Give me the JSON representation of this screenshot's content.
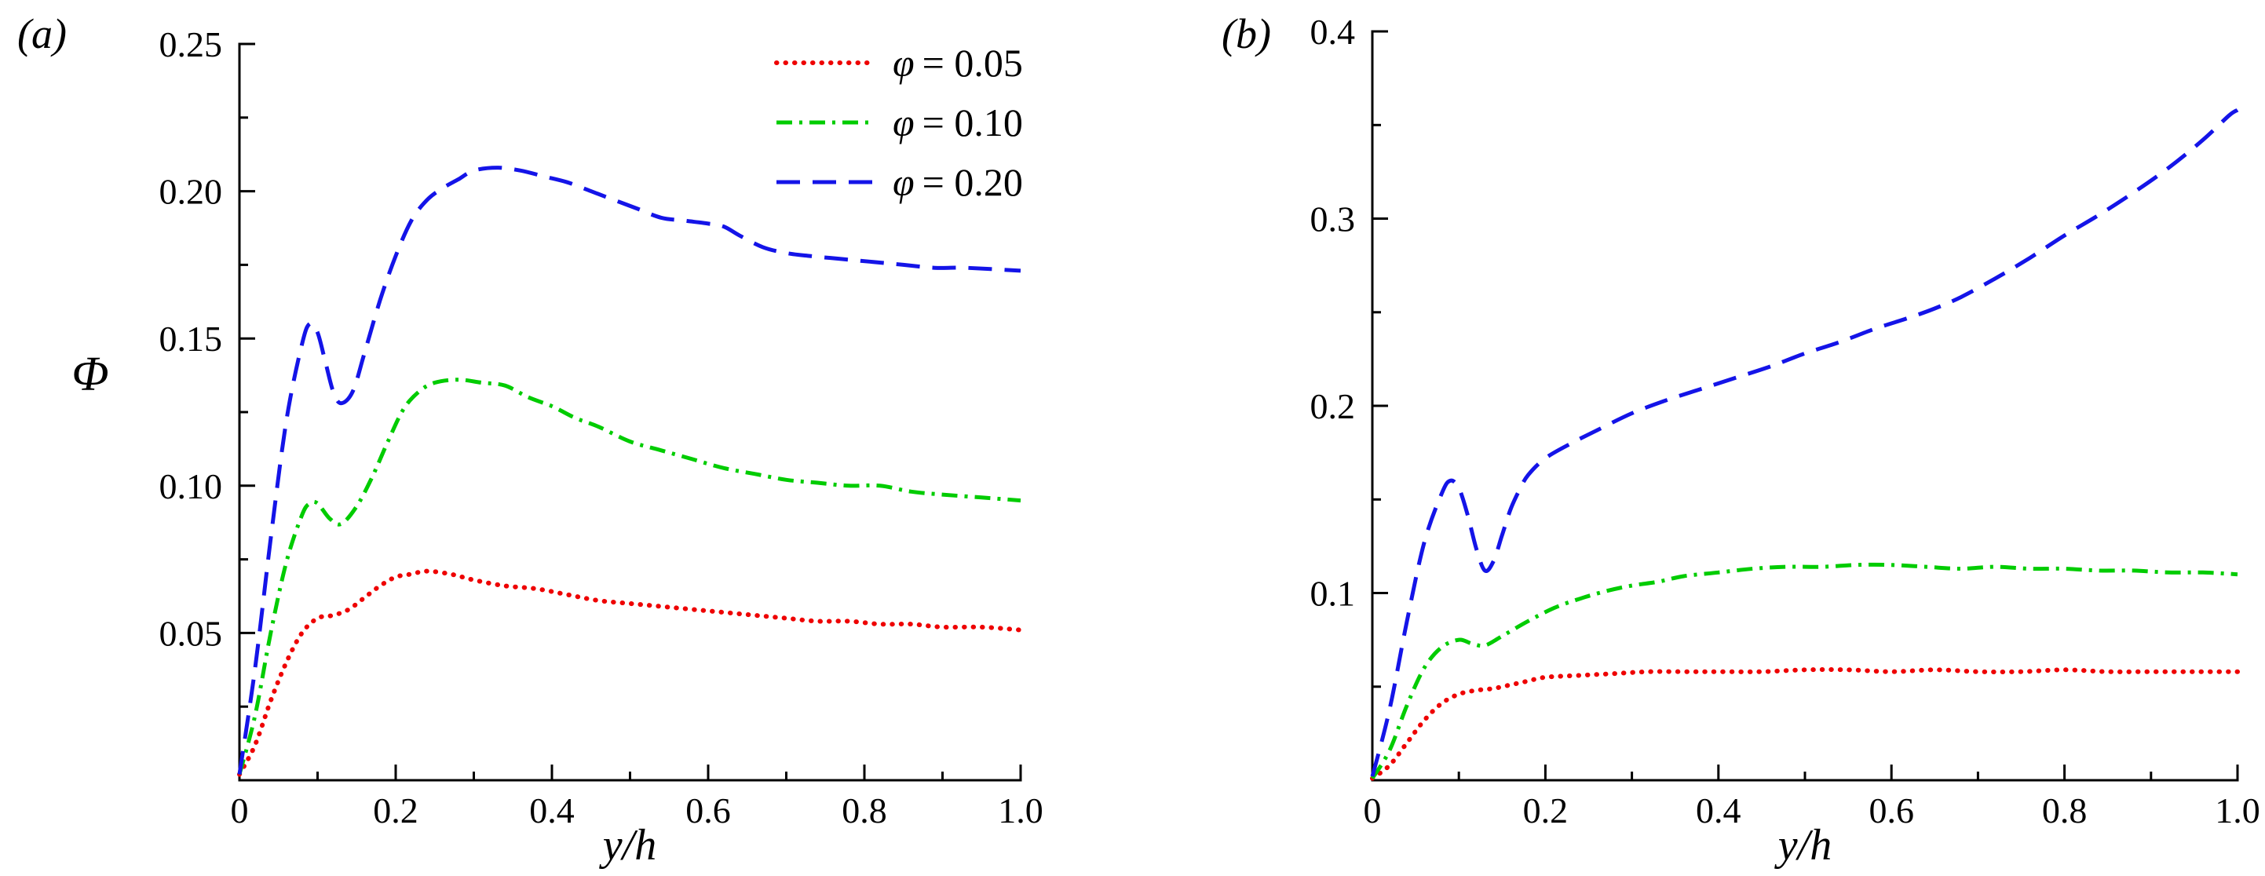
{
  "figure": {
    "background": "#ffffff"
  },
  "labels": {
    "panel_a": "(a)",
    "panel_b": "(b)",
    "y_axis_a": "Φ",
    "x_axis": "y/h"
  },
  "legend": {
    "items": [
      {
        "symbol": "φ",
        "rest": "= 0.05",
        "style": "dotted",
        "color": "#ee0000"
      },
      {
        "symbol": "φ",
        "rest": "= 0.10",
        "style": "dashdot",
        "color": "#00cc00"
      },
      {
        "symbol": "φ",
        "rest": "= 0.20",
        "style": "dashed",
        "color": "#1414e8"
      }
    ]
  },
  "styles": {
    "axis_color": "#000000",
    "axis_width": 3,
    "tick_len_major": 20,
    "tick_len_minor": 11,
    "tick_font_size": 46,
    "dash_patterns": {
      "dotted": [
        0.5,
        11
      ],
      "dashdot": [
        20,
        9,
        4,
        9
      ],
      "dashed": [
        30,
        16
      ]
    },
    "line_caps": {
      "dotted": "round",
      "dashdot": "butt",
      "dashed": "butt"
    },
    "stroke_widths": {
      "dotted": 6,
      "dashdot": 5,
      "dashed": 5
    }
  },
  "chart_data": [
    {
      "type": "line",
      "panel": "a",
      "title": "",
      "xlabel": "y/h",
      "ylabel": "Φ",
      "xlim": [
        0,
        1.0
      ],
      "ylim": [
        0,
        0.25
      ],
      "xticks": [
        0,
        0.2,
        0.4,
        0.6,
        0.8,
        1.0
      ],
      "xtick_labels": [
        "0",
        "0.2",
        "0.4",
        "0.6",
        "0.8",
        "1.0"
      ],
      "yticks": [
        0.05,
        0.1,
        0.15,
        0.2,
        0.25
      ],
      "ytick_labels": [
        "0.05",
        "0.10",
        "0.15",
        "0.20",
        "0.25"
      ],
      "xminor": [
        0.1,
        0.3,
        0.5,
        0.7,
        0.9
      ],
      "yminor": [
        0.025,
        0.075,
        0.125,
        0.175,
        0.225
      ],
      "grid": false,
      "legend_position": "upper-right-inside",
      "series": [
        {
          "name": "φ = 0.05",
          "style": "dotted",
          "color": "#ee0000",
          "points": [
            [
              0,
              0.002
            ],
            [
              0.02,
              0.012
            ],
            [
              0.04,
              0.027
            ],
            [
              0.06,
              0.04
            ],
            [
              0.08,
              0.05
            ],
            [
              0.1,
              0.055
            ],
            [
              0.12,
              0.056
            ],
            [
              0.14,
              0.058
            ],
            [
              0.16,
              0.062
            ],
            [
              0.18,
              0.066
            ],
            [
              0.2,
              0.069
            ],
            [
              0.22,
              0.07
            ],
            [
              0.24,
              0.071
            ],
            [
              0.27,
              0.07
            ],
            [
              0.3,
              0.068
            ],
            [
              0.34,
              0.066
            ],
            [
              0.38,
              0.065
            ],
            [
              0.42,
              0.063
            ],
            [
              0.46,
              0.061
            ],
            [
              0.5,
              0.06
            ],
            [
              0.54,
              0.059
            ],
            [
              0.58,
              0.058
            ],
            [
              0.62,
              0.057
            ],
            [
              0.66,
              0.056
            ],
            [
              0.7,
              0.055
            ],
            [
              0.74,
              0.054
            ],
            [
              0.78,
              0.054
            ],
            [
              0.82,
              0.053
            ],
            [
              0.86,
              0.053
            ],
            [
              0.9,
              0.052
            ],
            [
              0.95,
              0.052
            ],
            [
              1.0,
              0.051
            ]
          ]
        },
        {
          "name": "φ = 0.10",
          "style": "dashdot",
          "color": "#00cc00",
          "points": [
            [
              0,
              0.002
            ],
            [
              0.02,
              0.022
            ],
            [
              0.04,
              0.05
            ],
            [
              0.06,
              0.074
            ],
            [
              0.08,
              0.09
            ],
            [
              0.09,
              0.094
            ],
            [
              0.1,
              0.094
            ],
            [
              0.115,
              0.089
            ],
            [
              0.13,
              0.087
            ],
            [
              0.15,
              0.093
            ],
            [
              0.17,
              0.103
            ],
            [
              0.19,
              0.115
            ],
            [
              0.21,
              0.126
            ],
            [
              0.23,
              0.132
            ],
            [
              0.25,
              0.135
            ],
            [
              0.28,
              0.136
            ],
            [
              0.31,
              0.135
            ],
            [
              0.34,
              0.134
            ],
            [
              0.37,
              0.13
            ],
            [
              0.4,
              0.127
            ],
            [
              0.43,
              0.123
            ],
            [
              0.46,
              0.12
            ],
            [
              0.5,
              0.115
            ],
            [
              0.54,
              0.112
            ],
            [
              0.58,
              0.109
            ],
            [
              0.62,
              0.106
            ],
            [
              0.66,
              0.104
            ],
            [
              0.7,
              0.102
            ],
            [
              0.74,
              0.101
            ],
            [
              0.78,
              0.1
            ],
            [
              0.82,
              0.1
            ],
            [
              0.86,
              0.098
            ],
            [
              0.9,
              0.097
            ],
            [
              0.95,
              0.096
            ],
            [
              1.0,
              0.095
            ]
          ]
        },
        {
          "name": "φ = 0.20",
          "style": "dashed",
          "color": "#1414e8",
          "points": [
            [
              0,
              0.002
            ],
            [
              0.02,
              0.038
            ],
            [
              0.04,
              0.082
            ],
            [
              0.06,
              0.122
            ],
            [
              0.08,
              0.148
            ],
            [
              0.09,
              0.155
            ],
            [
              0.1,
              0.152
            ],
            [
              0.11,
              0.142
            ],
            [
              0.12,
              0.132
            ],
            [
              0.13,
              0.128
            ],
            [
              0.145,
              0.132
            ],
            [
              0.16,
              0.145
            ],
            [
              0.18,
              0.163
            ],
            [
              0.2,
              0.178
            ],
            [
              0.22,
              0.19
            ],
            [
              0.24,
              0.197
            ],
            [
              0.26,
              0.201
            ],
            [
              0.28,
              0.204
            ],
            [
              0.3,
              0.207
            ],
            [
              0.33,
              0.208
            ],
            [
              0.36,
              0.207
            ],
            [
              0.39,
              0.205
            ],
            [
              0.42,
              0.203
            ],
            [
              0.45,
              0.2
            ],
            [
              0.48,
              0.197
            ],
            [
              0.51,
              0.194
            ],
            [
              0.54,
              0.191
            ],
            [
              0.57,
              0.19
            ],
            [
              0.6,
              0.189
            ],
            [
              0.62,
              0.188
            ],
            [
              0.64,
              0.185
            ],
            [
              0.67,
              0.181
            ],
            [
              0.7,
              0.179
            ],
            [
              0.73,
              0.178
            ],
            [
              0.77,
              0.177
            ],
            [
              0.81,
              0.176
            ],
            [
              0.85,
              0.175
            ],
            [
              0.89,
              0.174
            ],
            [
              0.93,
              0.174
            ],
            [
              1.0,
              0.173
            ]
          ]
        }
      ]
    },
    {
      "type": "line",
      "panel": "b",
      "title": "",
      "xlabel": "y/h",
      "ylabel": "",
      "xlim": [
        0,
        1.0
      ],
      "ylim": [
        0,
        0.4
      ],
      "xticks": [
        0,
        0.2,
        0.4,
        0.6,
        0.8,
        1.0
      ],
      "xtick_labels": [
        "0",
        "0.2",
        "0.4",
        "0.6",
        "0.8",
        "1.0"
      ],
      "yticks": [
        0.1,
        0.2,
        0.3,
        0.4
      ],
      "ytick_labels": [
        "0.1",
        "0.2",
        "0.3",
        "0.4"
      ],
      "xminor": [
        0.1,
        0.3,
        0.5,
        0.7,
        0.9
      ],
      "yminor": [
        0.05,
        0.15,
        0.25,
        0.35
      ],
      "grid": false,
      "legend_position": "none",
      "series": [
        {
          "name": "φ = 0.05",
          "style": "dotted",
          "color": "#ee0000",
          "points": [
            [
              0,
              0.001
            ],
            [
              0.02,
              0.008
            ],
            [
              0.04,
              0.02
            ],
            [
              0.06,
              0.032
            ],
            [
              0.08,
              0.041
            ],
            [
              0.1,
              0.046
            ],
            [
              0.12,
              0.048
            ],
            [
              0.14,
              0.049
            ],
            [
              0.16,
              0.051
            ],
            [
              0.18,
              0.053
            ],
            [
              0.2,
              0.055
            ],
            [
              0.24,
              0.056
            ],
            [
              0.28,
              0.057
            ],
            [
              0.32,
              0.058
            ],
            [
              0.36,
              0.058
            ],
            [
              0.4,
              0.058
            ],
            [
              0.45,
              0.058
            ],
            [
              0.5,
              0.059
            ],
            [
              0.55,
              0.059
            ],
            [
              0.6,
              0.058
            ],
            [
              0.65,
              0.059
            ],
            [
              0.7,
              0.058
            ],
            [
              0.75,
              0.058
            ],
            [
              0.8,
              0.059
            ],
            [
              0.85,
              0.058
            ],
            [
              0.9,
              0.058
            ],
            [
              0.95,
              0.058
            ],
            [
              1.0,
              0.058
            ]
          ]
        },
        {
          "name": "φ = 0.10",
          "style": "dashdot",
          "color": "#00cc00",
          "points": [
            [
              0,
              0.001
            ],
            [
              0.02,
              0.016
            ],
            [
              0.04,
              0.04
            ],
            [
              0.06,
              0.06
            ],
            [
              0.08,
              0.071
            ],
            [
              0.1,
              0.075
            ],
            [
              0.115,
              0.073
            ],
            [
              0.13,
              0.072
            ],
            [
              0.15,
              0.077
            ],
            [
              0.18,
              0.085
            ],
            [
              0.21,
              0.092
            ],
            [
              0.24,
              0.097
            ],
            [
              0.27,
              0.101
            ],
            [
              0.3,
              0.104
            ],
            [
              0.33,
              0.106
            ],
            [
              0.36,
              0.109
            ],
            [
              0.4,
              0.111
            ],
            [
              0.44,
              0.113
            ],
            [
              0.48,
              0.114
            ],
            [
              0.52,
              0.114
            ],
            [
              0.56,
              0.115
            ],
            [
              0.6,
              0.115
            ],
            [
              0.64,
              0.114
            ],
            [
              0.68,
              0.113
            ],
            [
              0.72,
              0.114
            ],
            [
              0.76,
              0.113
            ],
            [
              0.8,
              0.113
            ],
            [
              0.84,
              0.112
            ],
            [
              0.88,
              0.112
            ],
            [
              0.92,
              0.111
            ],
            [
              0.96,
              0.111
            ],
            [
              1.0,
              0.11
            ]
          ]
        },
        {
          "name": "φ = 0.20",
          "style": "dashed",
          "color": "#1414e8",
          "points": [
            [
              0,
              0.002
            ],
            [
              0.02,
              0.038
            ],
            [
              0.04,
              0.085
            ],
            [
              0.06,
              0.127
            ],
            [
              0.08,
              0.153
            ],
            [
              0.09,
              0.16
            ],
            [
              0.1,
              0.156
            ],
            [
              0.11,
              0.142
            ],
            [
              0.12,
              0.124
            ],
            [
              0.13,
              0.112
            ],
            [
              0.14,
              0.117
            ],
            [
              0.15,
              0.131
            ],
            [
              0.16,
              0.145
            ],
            [
              0.17,
              0.155
            ],
            [
              0.18,
              0.163
            ],
            [
              0.2,
              0.172
            ],
            [
              0.23,
              0.18
            ],
            [
              0.26,
              0.187
            ],
            [
              0.3,
              0.196
            ],
            [
              0.34,
              0.203
            ],
            [
              0.38,
              0.209
            ],
            [
              0.42,
              0.215
            ],
            [
              0.46,
              0.221
            ],
            [
              0.5,
              0.228
            ],
            [
              0.54,
              0.234
            ],
            [
              0.58,
              0.241
            ],
            [
              0.62,
              0.247
            ],
            [
              0.65,
              0.252
            ],
            [
              0.68,
              0.258
            ],
            [
              0.72,
              0.268
            ],
            [
              0.76,
              0.279
            ],
            [
              0.8,
              0.291
            ],
            [
              0.84,
              0.302
            ],
            [
              0.88,
              0.314
            ],
            [
              0.92,
              0.327
            ],
            [
              0.96,
              0.342
            ],
            [
              0.99,
              0.355
            ],
            [
              1.0,
              0.358
            ]
          ]
        }
      ]
    }
  ]
}
